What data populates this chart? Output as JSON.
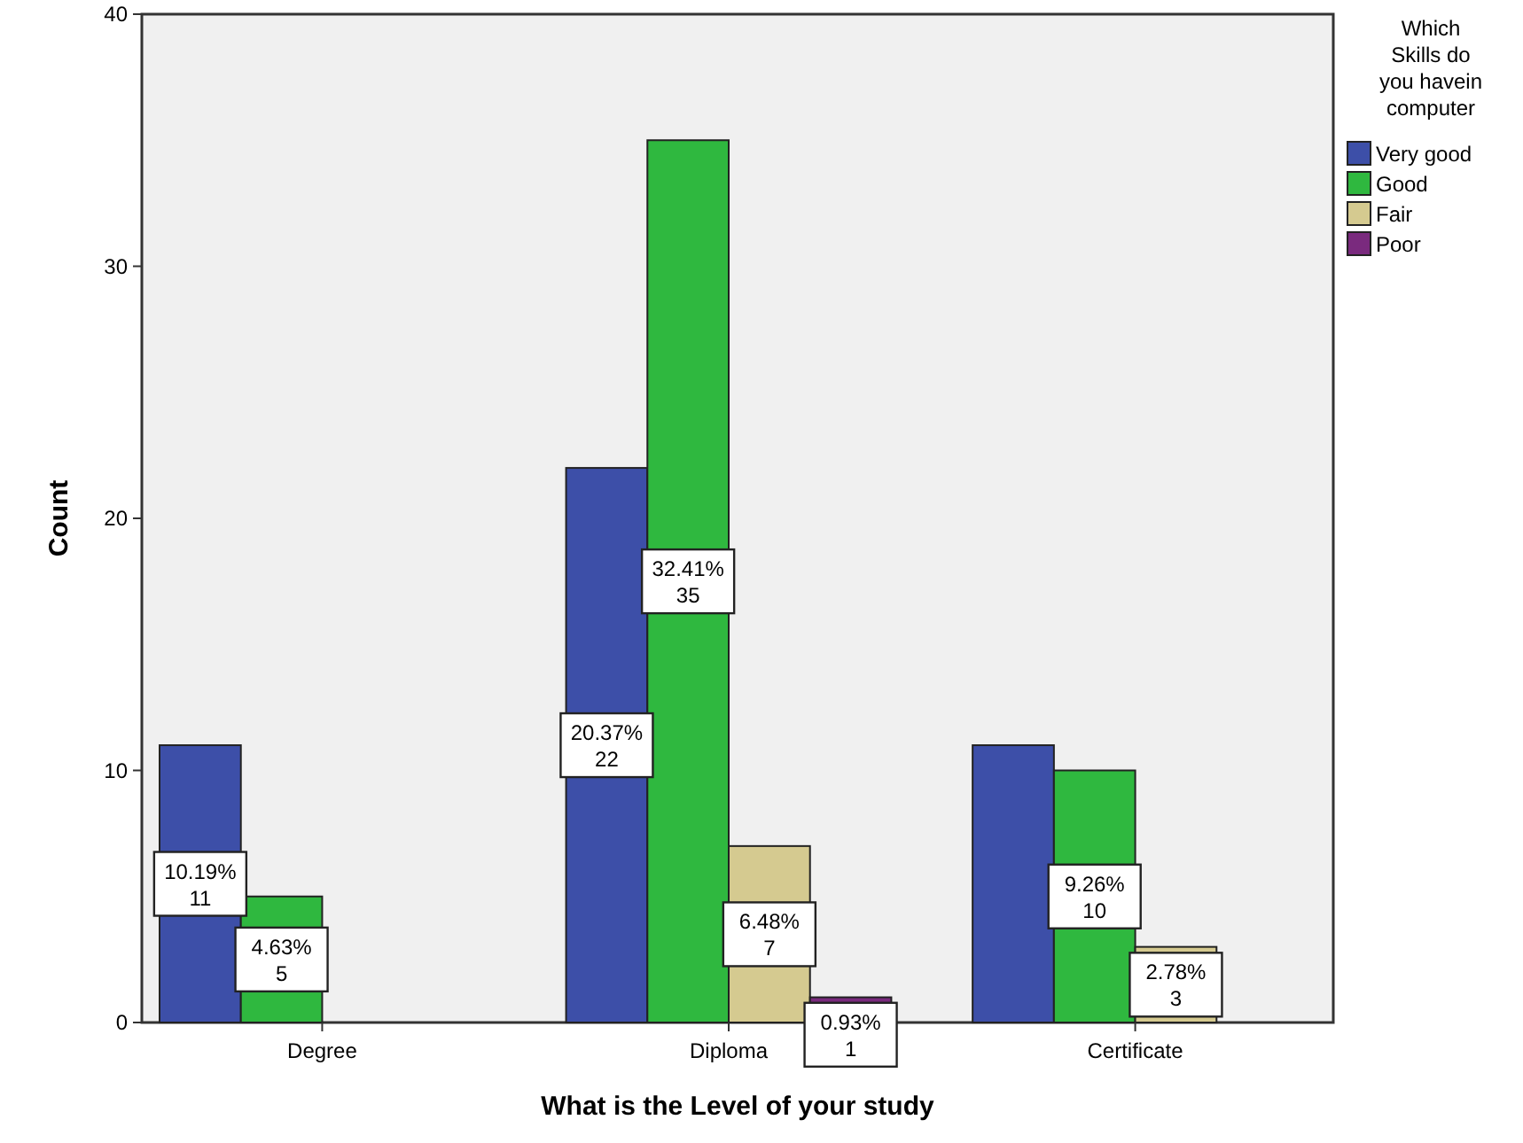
{
  "chart_data": {
    "type": "bar",
    "xlabel": "What is the Level of your study",
    "ylabel": "Count",
    "legend_title": "Which Skills do you havein computer",
    "categories": [
      "Degree",
      "Diploma",
      "Certificate"
    ],
    "series": [
      {
        "name": "Very good",
        "color": "#3d4fa8",
        "values": [
          11,
          22,
          11
        ],
        "value_labels": [
          "10.19%\n11",
          "20.37%\n22",
          null
        ]
      },
      {
        "name": "Good",
        "color": "#2fb83f",
        "values": [
          5,
          35,
          10
        ],
        "value_labels": [
          "4.63%\n5",
          "32.41%\n35",
          "9.26%\n10"
        ]
      },
      {
        "name": "Fair",
        "color": "#d5ca90",
        "values": [
          0,
          7,
          3
        ],
        "value_labels": [
          null,
          "6.48%\n7",
          "2.78%\n3"
        ]
      },
      {
        "name": "Poor",
        "color": "#7a2a7e",
        "values": [
          0,
          1,
          0
        ],
        "value_labels": [
          null,
          "0.93%\n1",
          null
        ]
      }
    ],
    "ylim": [
      0,
      40
    ],
    "yticks": [
      0,
      10,
      20,
      30,
      40
    ],
    "grid": false,
    "legend": "right"
  }
}
